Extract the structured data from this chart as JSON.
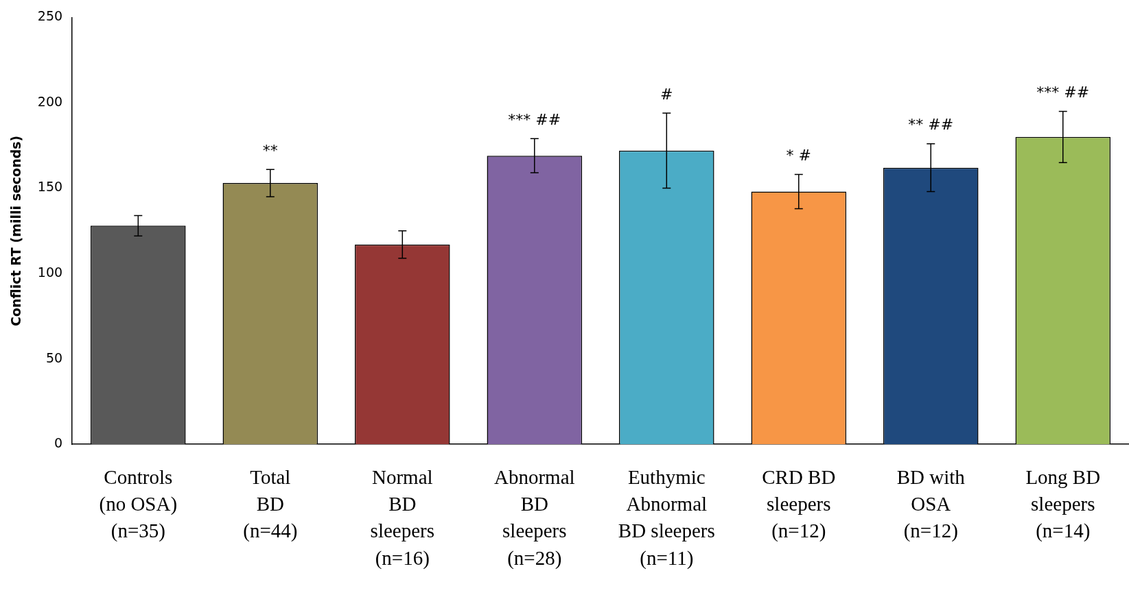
{
  "chart_data": {
    "type": "bar",
    "ylabel": "Conflict RT (milli seconds)",
    "categories": [
      "Controls\n(no OSA)\n(n=35)",
      "Total\nBD\n(n=44)",
      "Normal\nBD\nsleepers\n(n=16)",
      "Abnormal\nBD\nsleepers\n(n=28)",
      "Euthymic\nAbnormal\nBD sleepers\n(n=11)",
      "CRD BD\nsleepers\n(n=12)",
      "BD with\nOSA\n(n=12)",
      "Long BD\nsleepers\n(n=14)"
    ],
    "values": [
      128,
      153,
      117,
      169,
      172,
      148,
      162,
      180
    ],
    "errors": [
      6,
      8,
      8,
      10,
      22,
      10,
      14,
      15
    ],
    "colors": [
      "#595959",
      "#948a54",
      "#953735",
      "#8064a2",
      "#4bacc6",
      "#f79646",
      "#1f497d",
      "#9bbb59"
    ],
    "ylim": [
      0,
      250
    ],
    "yticks": [
      0,
      50,
      100,
      150,
      200,
      250
    ],
    "grid": false,
    "legend": false,
    "annotations": [
      {
        "text": "**",
        "x": "Total\nBD\n(n=44)",
        "y": 161
      },
      {
        "text": "*** ##",
        "x": "Abnormal\nBD\nsleepers\n(n=28)",
        "y": 179
      },
      {
        "text": "#",
        "x": "Euthymic\nAbnormal\nBD sleepers\n(n=11)",
        "y": 194
      },
      {
        "text": "* #",
        "x": "CRD BD\nsleepers\n(n=12)",
        "y": 158
      },
      {
        "text": "** ##",
        "x": "BD with\nOSA\n(n=12)",
        "y": 176
      },
      {
        "text": "*** ##",
        "x": "Long BD\nsleepers\n(n=14)",
        "y": 195
      }
    ]
  }
}
